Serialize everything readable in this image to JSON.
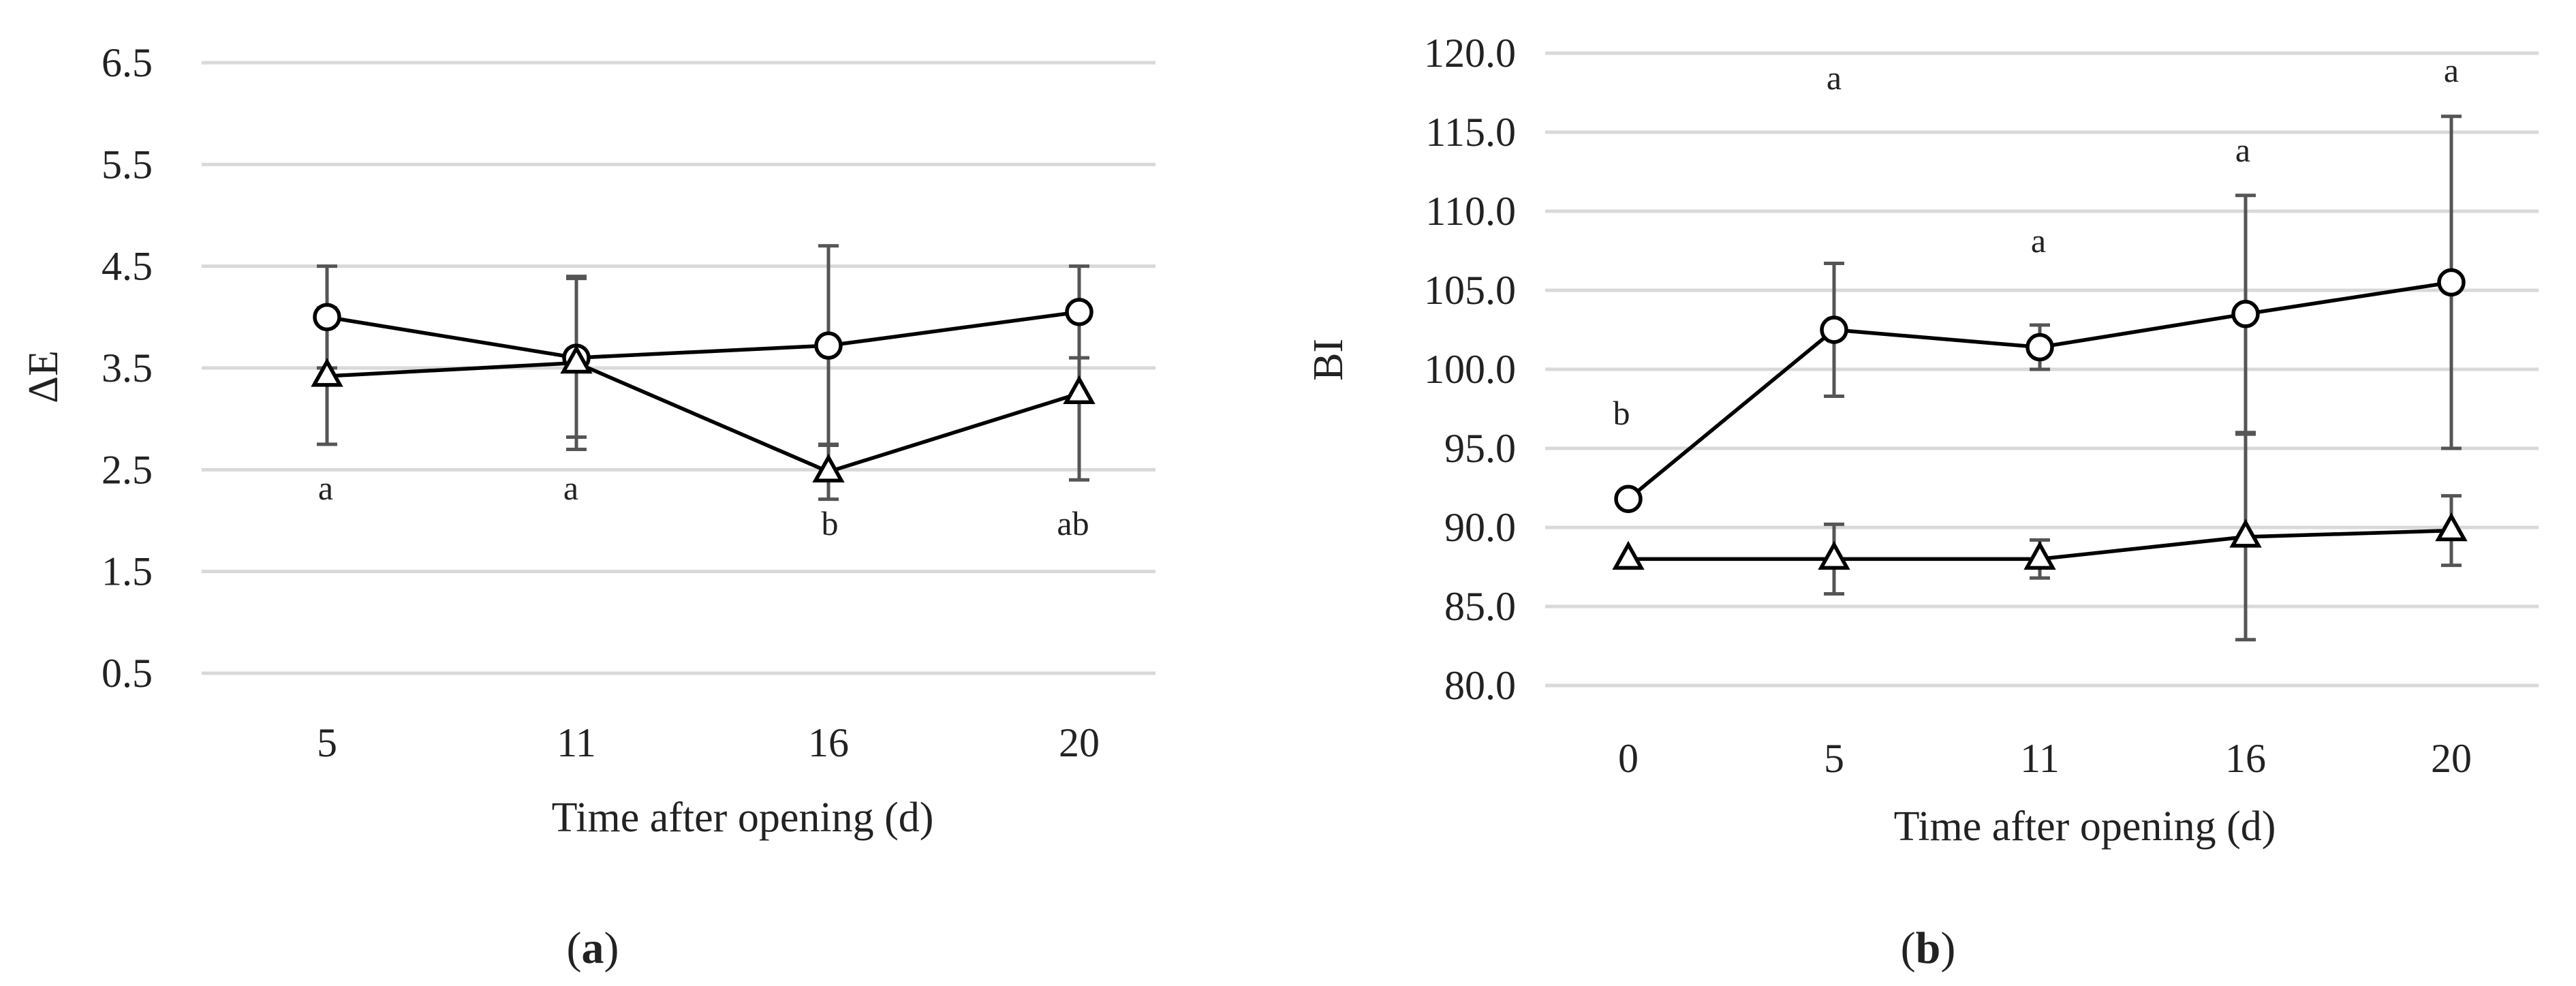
{
  "chart_data": [
    {
      "type": "line",
      "panel_label": "a",
      "xlabel": "Time after opening (d)",
      "ylabel": "ΔE",
      "ylim": [
        0.5,
        6.5
      ],
      "yticks": [
        "0.5",
        "1.5",
        "2.5",
        "3.5",
        "4.5",
        "5.5",
        "6.5"
      ],
      "categories": [
        "5",
        "11",
        "16",
        "20"
      ],
      "grid": true,
      "series": [
        {
          "name": "circle",
          "marker": "circle",
          "values": [
            4.0,
            3.6,
            3.72,
            4.05
          ],
          "error": [
            0.5,
            0.78,
            0.98,
            0.45
          ]
        },
        {
          "name": "triangle",
          "marker": "triangle",
          "values": [
            3.42,
            3.55,
            2.48,
            3.25
          ],
          "error": [
            0.67,
            0.85,
            0.27,
            0.85
          ]
        }
      ],
      "annotations": [
        "a",
        "a",
        "b",
        "ab"
      ]
    },
    {
      "type": "line",
      "panel_label": "b",
      "xlabel": "Time after opening (d)",
      "ylabel": "BI",
      "ylim": [
        80.0,
        120.0
      ],
      "yticks": [
        "80.0",
        "85.0",
        "90.0",
        "95.0",
        "100.0",
        "105.0",
        "110.0",
        "115.0",
        "120.0"
      ],
      "categories": [
        "0",
        "5",
        "11",
        "16",
        "20"
      ],
      "grid": true,
      "series": [
        {
          "name": "circle",
          "marker": "circle",
          "values": [
            91.8,
            102.5,
            101.4,
            103.5,
            105.5
          ],
          "error": [
            0,
            4.2,
            1.4,
            7.5,
            10.5
          ]
        },
        {
          "name": "triangle",
          "marker": "triangle",
          "values": [
            88.0,
            88.0,
            88.0,
            89.4,
            89.8
          ],
          "error": [
            0,
            2.2,
            1.2,
            6.5,
            2.2
          ]
        }
      ],
      "annotations": [
        "b",
        "a",
        "a",
        "a",
        "a"
      ]
    }
  ]
}
